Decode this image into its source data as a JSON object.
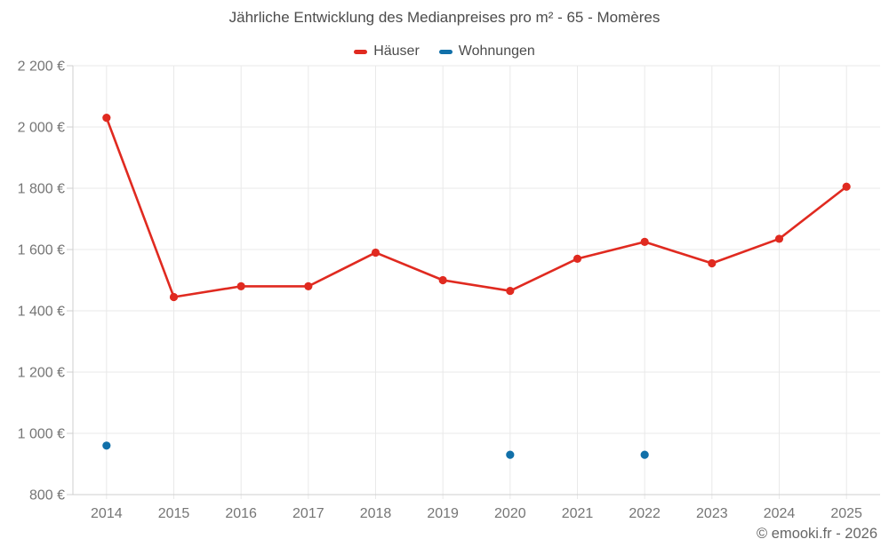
{
  "header": {
    "title": "Jährliche Entwicklung des Medianpreises pro m² - 65 - Momères"
  },
  "footer": {
    "credit": "© emooki.fr - 2026"
  },
  "chart_data": {
    "type": "line",
    "title": "Jährliche Entwicklung des Medianpreises pro m² - 65 - Momères",
    "categories": [
      "2014",
      "2015",
      "2016",
      "2017",
      "2018",
      "2019",
      "2020",
      "2021",
      "2022",
      "2023",
      "2024",
      "2025"
    ],
    "series": [
      {
        "name": "Häuser",
        "color": "#e02a20",
        "values": [
          2030,
          1445,
          1480,
          1480,
          1590,
          1500,
          1465,
          1570,
          1625,
          1555,
          1635,
          1805
        ]
      },
      {
        "name": "Wohnungen",
        "color": "#1170a9",
        "values": [
          960,
          null,
          null,
          null,
          null,
          null,
          930,
          null,
          930,
          null,
          null,
          null
        ]
      }
    ],
    "ylim": [
      800,
      2200
    ],
    "y_step": 200,
    "unit": "€",
    "y_tick_labels": [
      "800 €",
      "1 000 €",
      "1 200 €",
      "1 400 €",
      "1 600 €",
      "1 800 €",
      "2 000 €",
      "2 200 €"
    ],
    "grid": true,
    "legend_position": "top",
    "grid_color": "#e9e9e9",
    "axis_color": "#cfcfcf",
    "label_color": "#757575"
  }
}
